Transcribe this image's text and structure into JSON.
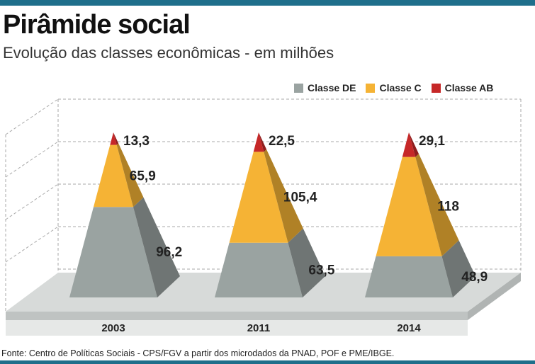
{
  "header": {
    "title": "Pirâmide social",
    "subtitle": "Evolução das classes econômicas - em milhões"
  },
  "legend": [
    {
      "label": "Classe DE",
      "color": "#9aa3a1"
    },
    {
      "label": "Classe C",
      "color": "#f5b335"
    },
    {
      "label": "Classe AB",
      "color": "#c62828"
    }
  ],
  "chart_data": {
    "type": "bar",
    "title": "Pirâmide social",
    "subtitle": "Evolução das classes econômicas - em milhões",
    "categories": [
      "2003",
      "2011",
      "2014"
    ],
    "series": [
      {
        "name": "Classe DE",
        "values": [
          96.2,
          63.5,
          48.9
        ],
        "labels": [
          "96,2",
          "63,5",
          "48,9"
        ],
        "color": "#9aa3a1"
      },
      {
        "name": "Classe C",
        "values": [
          65.9,
          105.4,
          118
        ],
        "labels": [
          "65,9",
          "105,4",
          "118"
        ],
        "color": "#f5b335"
      },
      {
        "name": "Classe AB",
        "values": [
          13.3,
          22.5,
          29.1
        ],
        "labels": [
          "13,3",
          "22,5",
          "29,1"
        ],
        "color": "#c62828"
      }
    ],
    "stacked": true,
    "grid": true,
    "legend_position": "top-right",
    "xlabel": "",
    "ylabel": ""
  },
  "footer": {
    "source": "Fonte: Centro de Políticas Sociais - CPS/FGV a partir dos microdados da PNAD, POF e PME/IBGE."
  }
}
